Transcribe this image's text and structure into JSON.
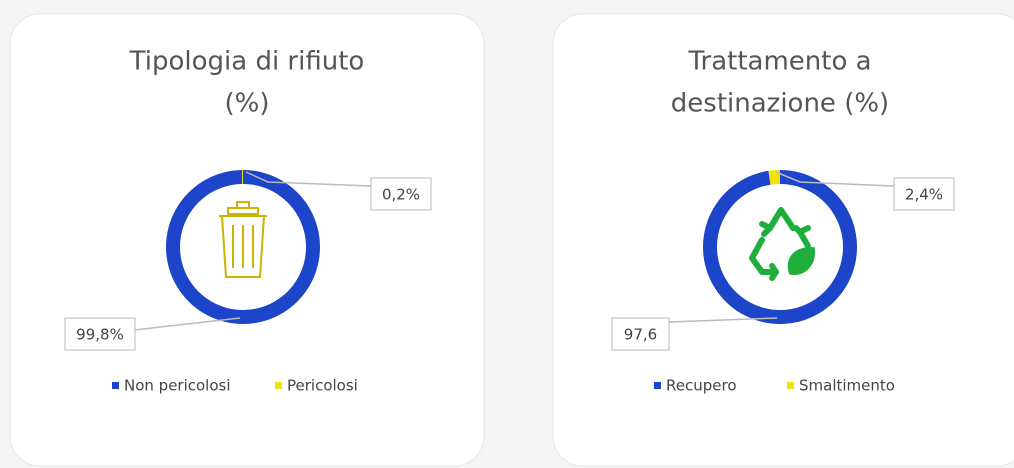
{
  "chart_data": [
    {
      "type": "pie",
      "donut": true,
      "title": [
        "Tipologia di rifiuto",
        "(%)"
      ],
      "categories": [
        "Non pericolosi",
        "Pericolosi"
      ],
      "values": [
        99.8,
        0.2
      ],
      "value_labels": [
        "99,8%",
        "0,2%"
      ],
      "colors": [
        "#1d45c9",
        "#f2e300"
      ]
    },
    {
      "type": "pie",
      "donut": true,
      "title": [
        "Trattamento a",
        "destinazione (%)"
      ],
      "categories": [
        "Recupero",
        "Smaltimento"
      ],
      "values": [
        97.6,
        2.4
      ],
      "value_labels": [
        "97,6",
        "2,4%"
      ],
      "colors": [
        "#1d45c9",
        "#f2e300"
      ]
    }
  ]
}
